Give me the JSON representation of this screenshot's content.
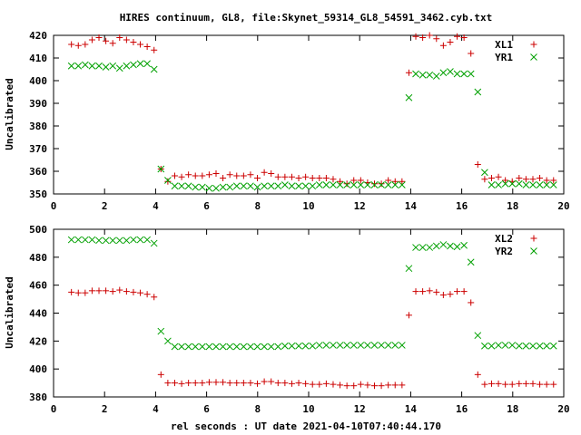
{
  "title": "HIRES continuum, GL8, file:Skynet_59314_GL8_54591_3462.cyb.txt",
  "xlabel": "rel seconds : UT date 2021-04-10T07:40:44.170",
  "chart_data": [
    {
      "type": "scatter",
      "ylabel": "Uncalibrated",
      "xlim": [
        0,
        20
      ],
      "ylim": [
        350,
        420
      ],
      "xticks": [
        0,
        2,
        4,
        6,
        8,
        10,
        12,
        14,
        16,
        18,
        20
      ],
      "yticks": [
        350,
        360,
        370,
        380,
        390,
        400,
        410,
        420
      ],
      "legend_position": "top-right",
      "series": [
        {
          "name": "XL1",
          "marker": "plus",
          "color": "#cc0000",
          "x": [
            0.7,
            0.97,
            1.24,
            1.51,
            1.78,
            2.05,
            2.32,
            2.59,
            2.86,
            3.13,
            3.4,
            3.67,
            3.94,
            4.21,
            4.48,
            4.75,
            5.02,
            5.29,
            5.56,
            5.83,
            6.1,
            6.37,
            6.64,
            6.91,
            7.18,
            7.45,
            7.72,
            7.99,
            8.26,
            8.53,
            8.8,
            9.07,
            9.34,
            9.61,
            9.88,
            10.15,
            10.42,
            10.69,
            10.96,
            11.23,
            11.5,
            11.77,
            12.04,
            12.31,
            12.58,
            12.85,
            13.12,
            13.39,
            13.66,
            13.93,
            14.2,
            14.47,
            14.74,
            15.01,
            15.28,
            15.55,
            15.82,
            16.09,
            16.36,
            16.63,
            16.9,
            17.17,
            17.44,
            17.71,
            17.98,
            18.25,
            18.52,
            18.79,
            19.06,
            19.33,
            19.6
          ],
          "y": [
            416,
            415.5,
            416,
            418,
            419,
            417.5,
            416.5,
            419,
            418,
            417,
            416,
            415,
            413.5,
            361,
            355.5,
            358,
            357.5,
            358.5,
            358,
            358,
            358.5,
            359,
            357,
            358.5,
            358,
            358,
            358.5,
            357,
            359.5,
            359,
            357.5,
            357.5,
            357.5,
            357,
            357.5,
            357,
            357,
            357,
            356.5,
            355.5,
            354.5,
            356,
            356,
            355,
            354.5,
            354.5,
            356,
            355.5,
            355.5,
            403.5,
            419.5,
            419,
            420,
            418.5,
            415.5,
            417,
            419.5,
            419,
            412,
            363,
            356.5,
            357,
            357.5,
            356,
            355.5,
            357,
            356.5,
            356.5,
            357,
            356,
            356
          ]
        },
        {
          "name": "YR1",
          "marker": "cross",
          "color": "#00a000",
          "x": [
            0.7,
            0.97,
            1.24,
            1.51,
            1.78,
            2.05,
            2.32,
            2.59,
            2.86,
            3.13,
            3.4,
            3.67,
            3.94,
            4.21,
            4.48,
            4.75,
            5.02,
            5.29,
            5.56,
            5.83,
            6.1,
            6.37,
            6.64,
            6.91,
            7.18,
            7.45,
            7.72,
            7.99,
            8.26,
            8.53,
            8.8,
            9.07,
            9.34,
            9.61,
            9.88,
            10.15,
            10.42,
            10.69,
            10.96,
            11.23,
            11.5,
            11.77,
            12.04,
            12.31,
            12.58,
            12.85,
            13.12,
            13.39,
            13.66,
            13.93,
            14.2,
            14.47,
            14.74,
            15.01,
            15.28,
            15.55,
            15.82,
            16.09,
            16.36,
            16.63,
            16.9,
            17.17,
            17.44,
            17.71,
            17.98,
            18.25,
            18.52,
            18.79,
            19.06,
            19.33,
            19.6
          ],
          "y": [
            406.5,
            406.5,
            407,
            406.5,
            406.5,
            406,
            406.5,
            405.5,
            406.5,
            407,
            407.5,
            407.5,
            405,
            361,
            356,
            353.5,
            353.5,
            353.5,
            353,
            353,
            352.5,
            352.5,
            353,
            353,
            353.5,
            353.5,
            353.5,
            353,
            353.5,
            353.5,
            353.5,
            354,
            353.5,
            353.5,
            353.5,
            353.5,
            354,
            354,
            354,
            354,
            354,
            354,
            354,
            354,
            354,
            354,
            354,
            354,
            354,
            392.5,
            403,
            402.5,
            402.5,
            402,
            403.5,
            404,
            403,
            403,
            403,
            395,
            359.5,
            354,
            354,
            354.5,
            354.5,
            354.5,
            354,
            354,
            354,
            354,
            354
          ]
        }
      ]
    },
    {
      "type": "scatter",
      "ylabel": "Uncalibrated",
      "xlim": [
        0,
        20
      ],
      "ylim": [
        380,
        500
      ],
      "xticks": [
        0,
        2,
        4,
        6,
        8,
        10,
        12,
        14,
        16,
        18,
        20
      ],
      "yticks": [
        380,
        400,
        420,
        440,
        460,
        480,
        500
      ],
      "legend_position": "top-right",
      "series": [
        {
          "name": "XL2",
          "marker": "plus",
          "color": "#cc0000",
          "x": [
            0.7,
            0.97,
            1.24,
            1.51,
            1.78,
            2.05,
            2.32,
            2.59,
            2.86,
            3.13,
            3.4,
            3.67,
            3.94,
            4.21,
            4.48,
            4.75,
            5.02,
            5.29,
            5.56,
            5.83,
            6.1,
            6.37,
            6.64,
            6.91,
            7.18,
            7.45,
            7.72,
            7.99,
            8.26,
            8.53,
            8.8,
            9.07,
            9.34,
            9.61,
            9.88,
            10.15,
            10.42,
            10.69,
            10.96,
            11.23,
            11.5,
            11.77,
            12.04,
            12.31,
            12.58,
            12.85,
            13.12,
            13.39,
            13.66,
            13.93,
            14.2,
            14.47,
            14.74,
            15.01,
            15.28,
            15.55,
            15.82,
            16.09,
            16.36,
            16.63,
            16.9,
            17.17,
            17.44,
            17.71,
            17.98,
            18.25,
            18.52,
            18.79,
            19.06,
            19.33,
            19.6
          ],
          "y": [
            455,
            454.5,
            454.5,
            456,
            456,
            456,
            455.5,
            456.5,
            455.5,
            455,
            454.5,
            453.5,
            451.5,
            396,
            390,
            390,
            389.5,
            390,
            390,
            390,
            390.5,
            390.5,
            390.5,
            390,
            390,
            390,
            390,
            389.5,
            391,
            391,
            390,
            390,
            389.5,
            390,
            389.5,
            389,
            389,
            389.5,
            389,
            388.5,
            388,
            388,
            389,
            388.5,
            388,
            388,
            388.5,
            388.5,
            388.5,
            438.5,
            455.5,
            455.5,
            456,
            455,
            453,
            453.5,
            455.5,
            455.5,
            447.5,
            396,
            389,
            389.5,
            389.5,
            389,
            389,
            389.5,
            389.5,
            389.5,
            389,
            389,
            389
          ]
        },
        {
          "name": "YR2",
          "marker": "cross",
          "color": "#00a000",
          "x": [
            0.7,
            0.97,
            1.24,
            1.51,
            1.78,
            2.05,
            2.32,
            2.59,
            2.86,
            3.13,
            3.4,
            3.67,
            3.94,
            4.21,
            4.48,
            4.75,
            5.02,
            5.29,
            5.56,
            5.83,
            6.1,
            6.37,
            6.64,
            6.91,
            7.18,
            7.45,
            7.72,
            7.99,
            8.26,
            8.53,
            8.8,
            9.07,
            9.34,
            9.61,
            9.88,
            10.15,
            10.42,
            10.69,
            10.96,
            11.23,
            11.5,
            11.77,
            12.04,
            12.31,
            12.58,
            12.85,
            13.12,
            13.39,
            13.66,
            13.93,
            14.2,
            14.47,
            14.74,
            15.01,
            15.28,
            15.55,
            15.82,
            16.09,
            16.36,
            16.63,
            16.9,
            17.17,
            17.44,
            17.71,
            17.98,
            18.25,
            18.52,
            18.79,
            19.06,
            19.33,
            19.6
          ],
          "y": [
            492.5,
            492.5,
            492.5,
            492.5,
            492,
            492,
            492,
            492,
            492,
            492.5,
            492.5,
            492.5,
            490,
            427,
            420,
            416,
            416,
            416,
            416,
            416,
            416,
            416,
            416,
            416,
            416,
            416,
            416,
            416,
            416,
            416,
            416,
            416.5,
            416.5,
            416.5,
            416.5,
            416.5,
            417,
            417,
            417,
            417,
            417,
            417,
            417,
            417,
            417,
            417,
            417,
            417,
            417,
            472,
            487,
            487,
            487,
            488,
            489,
            488,
            487.5,
            488.5,
            476.5,
            424,
            416.5,
            416.5,
            417,
            417,
            417,
            416.5,
            416.5,
            416.5,
            416.5,
            416.5,
            416.5
          ]
        }
      ]
    }
  ]
}
